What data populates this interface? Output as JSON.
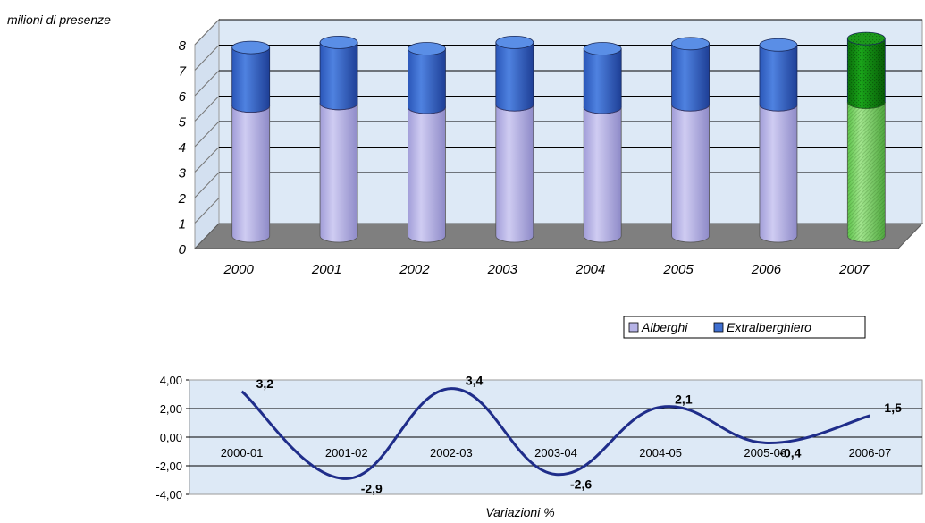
{
  "chart_data": [
    {
      "type": "bar",
      "stacked": true,
      "style": "3d-cylinder",
      "ylabel": "milioni di presenze",
      "categories": [
        "2000",
        "2001",
        "2002",
        "2003",
        "2004",
        "2005",
        "2006",
        "2007"
      ],
      "series": [
        {
          "name": "Alberghi",
          "values": [
            5.1,
            5.2,
            5.05,
            5.15,
            5.05,
            5.15,
            5.15,
            5.25
          ]
        },
        {
          "name": "Extralberghiero",
          "values": [
            2.3,
            2.4,
            2.3,
            2.45,
            2.3,
            2.4,
            2.35,
            2.5
          ]
        }
      ],
      "highlight_category": "2007",
      "ylim": [
        0,
        8
      ],
      "yticks": [
        "0",
        "1",
        "2",
        "3",
        "4",
        "5",
        "6",
        "7",
        "8"
      ],
      "grid": true,
      "legend": "bottom-right",
      "colors": {
        "alberghi": "#b6b3e6",
        "extralberghiero": "#3f6fd0",
        "highlight_bottom": "#7ed86a",
        "highlight_top": "#0f8a0f",
        "floor": "#7f7f7f",
        "wall": "#dde9f6"
      }
    },
    {
      "type": "line",
      "xlabel": "Variazioni %",
      "categories": [
        "2000-01",
        "2001-02",
        "2002-03",
        "2003-04",
        "2004-05",
        "2005-06",
        "2006-07"
      ],
      "values": [
        3.2,
        -2.9,
        3.4,
        -2.6,
        2.1,
        -0.4,
        1.5
      ],
      "data_labels": [
        "3,2",
        "-2,9",
        "3,4",
        "-2,6",
        "2,1",
        "-0,4",
        "1,5"
      ],
      "ylim": [
        -4,
        4
      ],
      "yticks": [
        "-4,00",
        "-2,00",
        "0,00",
        "2,00",
        "4,00"
      ],
      "grid": true,
      "colors": {
        "line": "#1f2d8a",
        "background": "#dde9f6"
      }
    }
  ]
}
